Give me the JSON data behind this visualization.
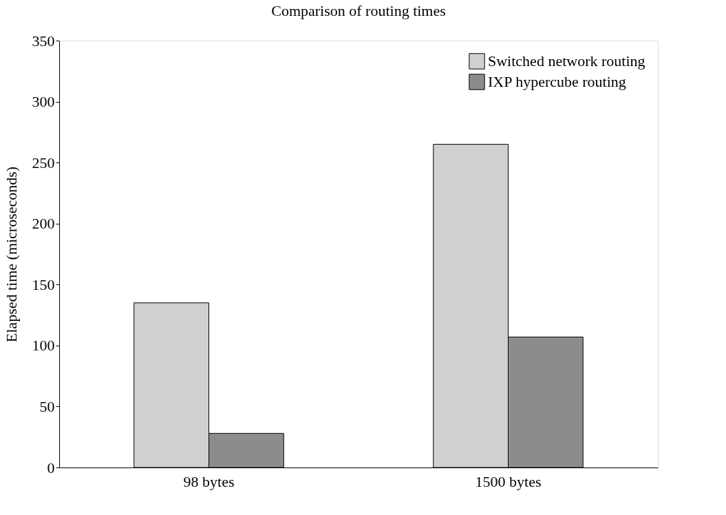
{
  "chart_data": {
    "type": "bar",
    "title": "Comparison of routing times",
    "ylabel": "Elapsed time (microseconds)",
    "categories": [
      "98 bytes",
      "1500 bytes"
    ],
    "series": [
      {
        "name": "Switched network routing",
        "color": "#d0d0d0",
        "values": [
          135,
          265
        ]
      },
      {
        "name": "IXP hypercube routing",
        "color": "#8c8c8c",
        "values": [
          28,
          107
        ]
      }
    ],
    "ylim": [
      0,
      350
    ],
    "yticks": [
      0,
      50,
      100,
      150,
      200,
      250,
      300,
      350
    ],
    "grid": false,
    "legend": "top right"
  }
}
